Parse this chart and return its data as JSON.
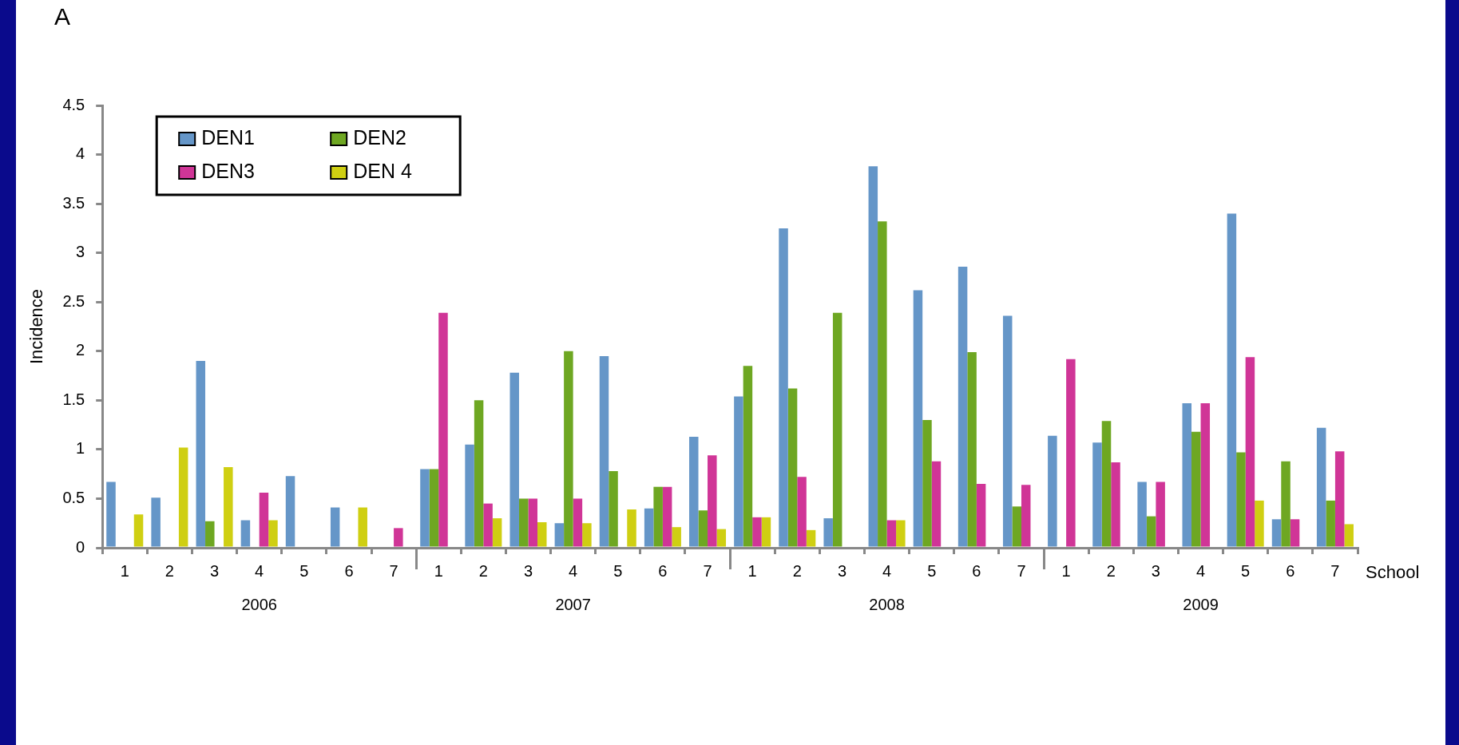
{
  "chart_data": {
    "type": "bar",
    "title": "A",
    "xlabel": "School",
    "ylabel": "Incidence",
    "categories": [
      "1",
      "2",
      "3",
      "4",
      "5",
      "6",
      "7",
      "1",
      "2",
      "3",
      "4",
      "5",
      "6",
      "7",
      "1",
      "2",
      "3",
      "4",
      "5",
      "6",
      "7",
      "1",
      "2",
      "3",
      "4",
      "5",
      "6",
      "7"
    ],
    "series": [
      {
        "name": "DEN1",
        "color": "#6596c8",
        "values": [
          0.67,
          0.51,
          1.9,
          0.28,
          0.73,
          0.41,
          0,
          0.8,
          1.05,
          1.78,
          0.25,
          1.95,
          0.4,
          1.13,
          1.54,
          3.25,
          0.3,
          3.88,
          2.62,
          2.86,
          2.36,
          1.14,
          1.07,
          0.67,
          1.47,
          3.4,
          0.29,
          1.22
        ]
      },
      {
        "name": "DEN2",
        "color": "#6ea722",
        "values": [
          0,
          0,
          0.27,
          0,
          0,
          0,
          0,
          0.8,
          1.5,
          0.5,
          2.0,
          0.78,
          0.62,
          0.38,
          1.85,
          1.62,
          2.39,
          3.32,
          1.3,
          1.99,
          0.42,
          0,
          1.29,
          0.32,
          1.18,
          0.97,
          0.88,
          0.48
        ]
      },
      {
        "name": "DEN3",
        "color": "#d03597",
        "values": [
          0,
          0,
          0,
          0.56,
          0,
          0,
          0.2,
          2.39,
          0.45,
          0.5,
          0.5,
          0,
          0.62,
          0.94,
          0.31,
          0.72,
          0,
          0.28,
          0.88,
          0.65,
          0.64,
          1.92,
          0.87,
          0.67,
          1.47,
          1.94,
          0.29,
          0.98
        ]
      },
      {
        "name": "DEN 4",
        "color": "#cfcf12",
        "values": [
          0.34,
          1.02,
          0.82,
          0.28,
          0,
          0.41,
          0,
          0,
          0.3,
          0.26,
          0.25,
          0.39,
          0.21,
          0.19,
          0.31,
          0.18,
          0,
          0.28,
          0,
          0,
          0,
          0,
          0,
          0,
          0,
          0.48,
          0,
          0.24
        ]
      }
    ],
    "ylim": [
      0,
      4.5
    ],
    "yticks": [
      0,
      0.5,
      1,
      1.5,
      2,
      2.5,
      3,
      3.5,
      4,
      4.5
    ],
    "grid": false,
    "legend": "top left",
    "annotations": [
      "2006",
      "2007",
      "2008",
      "2009"
    ]
  }
}
